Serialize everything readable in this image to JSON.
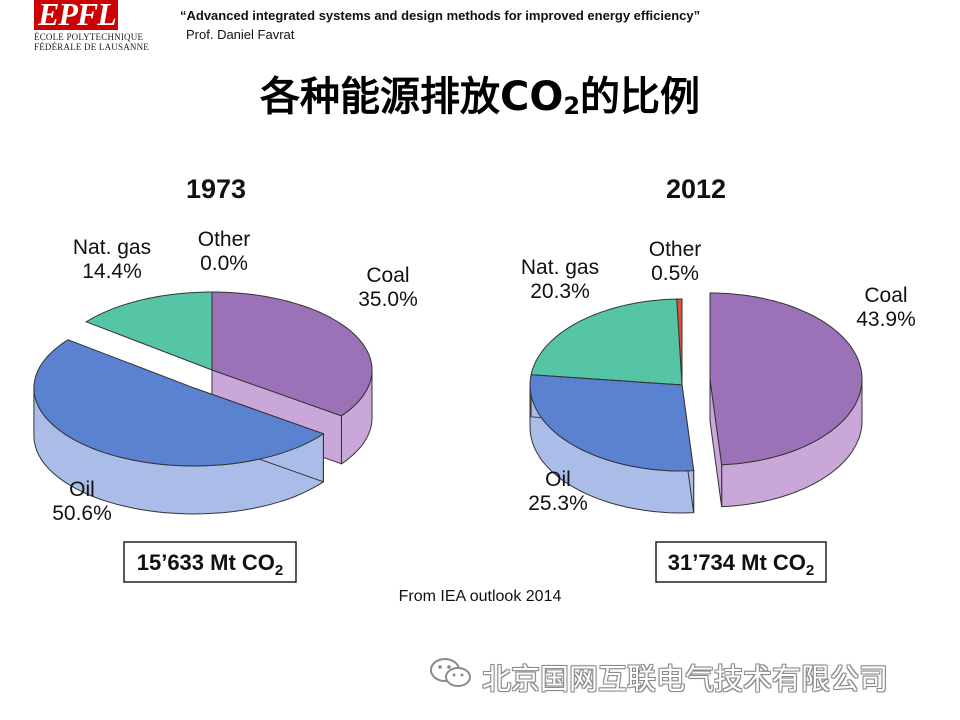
{
  "header": {
    "logo_text": "EPFL",
    "school_lines": [
      "ÉCOLE POLYTECHNIQUE",
      "FÉDÉRALE DE LAUSANNE"
    ],
    "talk_title": "“Advanced integrated systems and design methods for improved energy efficiency”",
    "author": "Prof. Daniel Favrat"
  },
  "page_title": {
    "main": "各种能源排放CO",
    "sub": "2",
    "tail": "的比例"
  },
  "source": "From IEA outlook 2014",
  "watermark": "北京国网互联电气技术有限公司",
  "colors": {
    "coal": "#9b72b8",
    "coal_side": "#c9a8d9",
    "oil": "#5b82d0",
    "oil_side": "#a9bde8",
    "gas": "#56c5a6",
    "gas_side": "#a7e0cf",
    "other": "#e0503a",
    "other_side": "#f09a88"
  },
  "chart_data": [
    {
      "type": "pie",
      "title": "1973",
      "categories": [
        "Coal",
        "Oil",
        "Nat. gas",
        "Other"
      ],
      "values": [
        35.0,
        50.6,
        14.4,
        0.0
      ],
      "labels": [
        "35.0%",
        "50.6%",
        "14.4%",
        "0.0%"
      ],
      "total_label": "15’633 Mt CO",
      "total_sub": "2"
    },
    {
      "type": "pie",
      "title": "2012",
      "categories": [
        "Coal",
        "Oil",
        "Nat. gas",
        "Other"
      ],
      "values": [
        43.9,
        25.3,
        20.3,
        0.5
      ],
      "labels": [
        "43.9%",
        "25.3%",
        "20.3%",
        "0.5%"
      ],
      "total_label": "31’734 Mt CO",
      "total_sub": "2"
    }
  ]
}
